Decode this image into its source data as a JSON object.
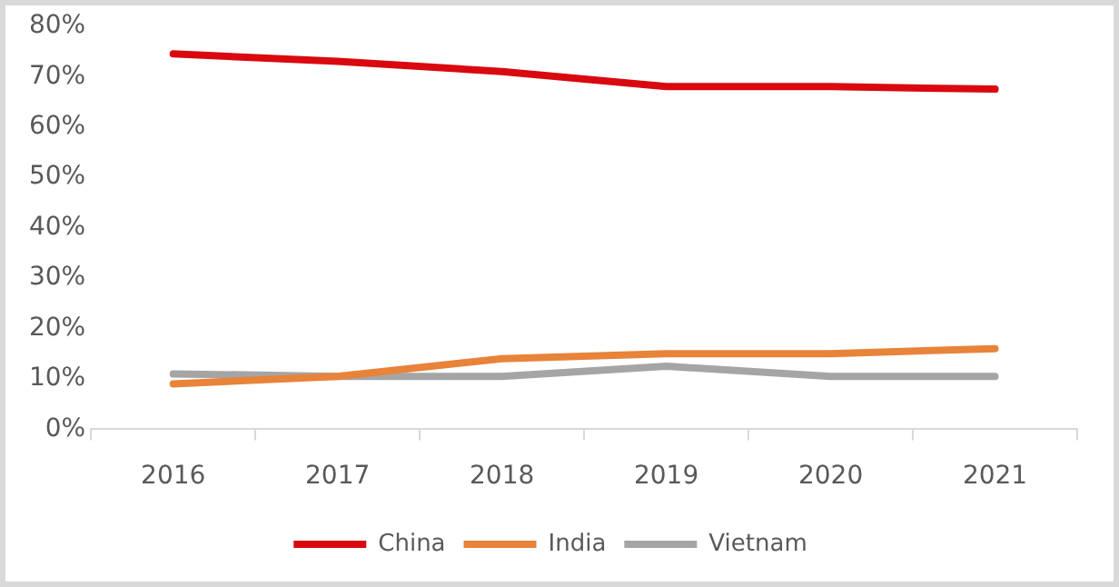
{
  "chart_data": {
    "type": "line",
    "categories": [
      "2016",
      "2017",
      "2018",
      "2019",
      "2020",
      "2021"
    ],
    "series": [
      {
        "name": "China",
        "color": "#d9090f",
        "values": [
          74.5,
          73,
          71,
          68,
          68,
          67.5
        ]
      },
      {
        "name": "India",
        "color": "#e8833a",
        "values": [
          9,
          10.5,
          14,
          15,
          15,
          16
        ]
      },
      {
        "name": "Vietnam",
        "color": "#a5a5a5",
        "values": [
          11,
          10.5,
          10.5,
          12.5,
          10.5,
          10.5
        ]
      }
    ],
    "ylim": [
      0,
      80
    ],
    "yticks": [
      {
        "value": 0,
        "label": "0%"
      },
      {
        "value": 10,
        "label": "10%"
      },
      {
        "value": 20,
        "label": "20%"
      },
      {
        "value": 30,
        "label": "30%"
      },
      {
        "value": 40,
        "label": "40%"
      },
      {
        "value": 50,
        "label": "50%"
      },
      {
        "value": 60,
        "label": "60%"
      },
      {
        "value": 70,
        "label": "70%"
      },
      {
        "value": 80,
        "label": "80%"
      }
    ],
    "grid": false,
    "legend": "bottom",
    "marker": "none",
    "line_style": "solid"
  }
}
